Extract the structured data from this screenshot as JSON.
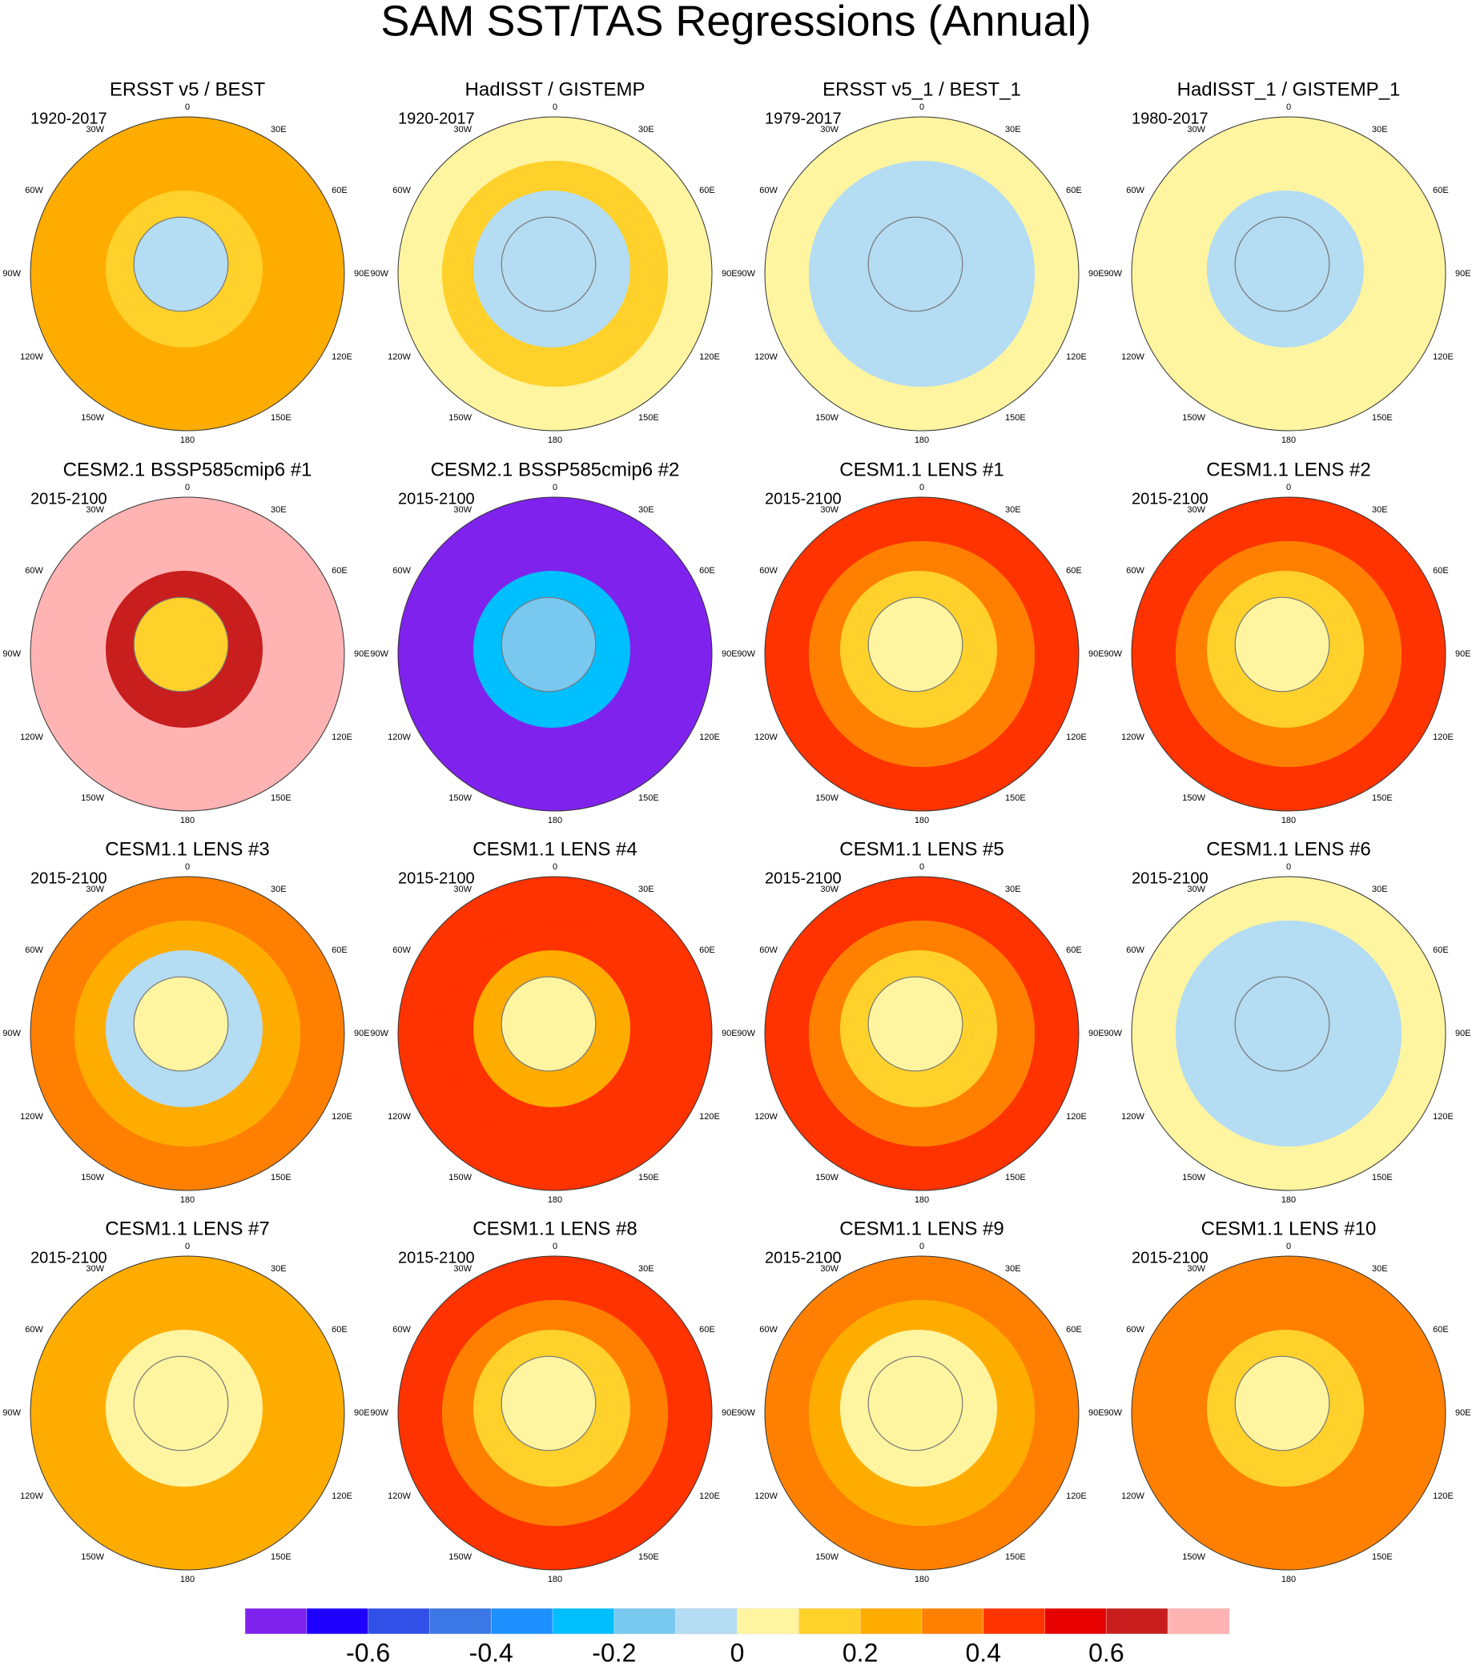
{
  "chart_data": {
    "type": "polar-map",
    "title": "SAM SST/TAS Regressions (Annual)",
    "lon_labels": [
      "0",
      "30E",
      "60E",
      "90E",
      "120E",
      "150E",
      "180",
      "150W",
      "120W",
      "90W",
      "60W",
      "30W"
    ],
    "panels": [
      {
        "title": "ERSST v5 / BEST",
        "period": "1920-2017",
        "values": [
          0.25,
          0.25,
          0.15,
          -0.05
        ]
      },
      {
        "title": "HadISST / GISTEMP",
        "period": "1920-2017",
        "values": [
          0.05,
          0.15,
          -0.05,
          -0.05
        ]
      },
      {
        "title": "ERSST v5_1 / BEST_1",
        "period": "1979-2017",
        "values": [
          0.05,
          -0.05,
          -0.05,
          -0.05
        ]
      },
      {
        "title": "HadISST_1 / GISTEMP_1",
        "period": "1980-2017",
        "values": [
          0.05,
          0.05,
          -0.05,
          -0.05
        ]
      },
      {
        "title": "CESM2.1 BSSP585cmip6 #1",
        "period": "2015-2100",
        "values": [
          0.75,
          0.75,
          0.65,
          0.15
        ]
      },
      {
        "title": "CESM2.1 BSSP585cmip6 #2",
        "period": "2015-2100",
        "values": [
          -0.75,
          -0.75,
          -0.25,
          -0.15
        ]
      },
      {
        "title": "CESM1.1 LENS #1",
        "period": "2015-2100",
        "values": [
          0.45,
          0.35,
          0.15,
          0.05
        ]
      },
      {
        "title": "CESM1.1 LENS #2",
        "period": "2015-2100",
        "values": [
          0.45,
          0.35,
          0.15,
          0.05
        ]
      },
      {
        "title": "CESM1.1 LENS #3",
        "period": "2015-2100",
        "values": [
          0.35,
          0.25,
          -0.05,
          0.05
        ]
      },
      {
        "title": "CESM1.1 LENS #4",
        "period": "2015-2100",
        "values": [
          0.45,
          0.45,
          0.25,
          0.05
        ]
      },
      {
        "title": "CESM1.1 LENS #5",
        "period": "2015-2100",
        "values": [
          0.45,
          0.35,
          0.15,
          0.05
        ]
      },
      {
        "title": "CESM1.1 LENS #6",
        "period": "2015-2100",
        "values": [
          0.05,
          -0.05,
          -0.05,
          -0.05
        ]
      },
      {
        "title": "CESM1.1 LENS #7",
        "period": "2015-2100",
        "values": [
          0.25,
          0.25,
          0.05,
          0.05
        ]
      },
      {
        "title": "CESM1.1 LENS #8",
        "period": "2015-2100",
        "values": [
          0.45,
          0.35,
          0.15,
          0.05
        ]
      },
      {
        "title": "CESM1.1 LENS #9",
        "period": "2015-2100",
        "values": [
          0.35,
          0.25,
          0.05,
          0.05
        ]
      },
      {
        "title": "CESM1.1 LENS #10",
        "period": "2015-2100",
        "values": [
          0.35,
          0.35,
          0.15,
          0.05
        ]
      }
    ],
    "colorbar": {
      "levels": [
        -0.7,
        -0.6,
        -0.5,
        -0.4,
        -0.3,
        -0.2,
        -0.1,
        0,
        0.1,
        0.2,
        0.3,
        0.4,
        0.5,
        0.6,
        0.7
      ],
      "colors": [
        "#7f22ee",
        "#1e00ff",
        "#3050e8",
        "#3b78e6",
        "#1e90ff",
        "#00bfff",
        "#79c8f0",
        "#b4dcf3",
        "#fff5a0",
        "#ffd12a",
        "#ffac00",
        "#ff8000",
        "#ff3300",
        "#e60000",
        "#c81e1e",
        "#ffb3b3"
      ],
      "ticks": [
        -0.6,
        -0.4,
        -0.2,
        0,
        0.2,
        0.4,
        0.6
      ]
    }
  }
}
